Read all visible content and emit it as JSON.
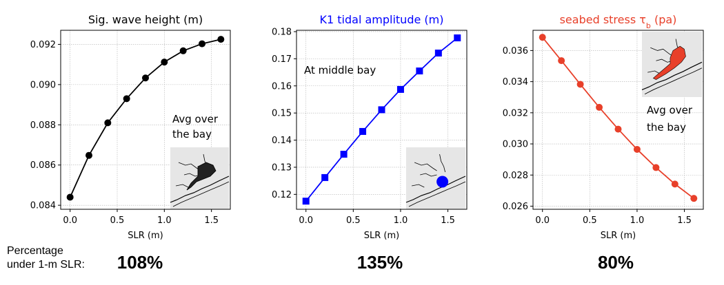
{
  "chart_data": [
    {
      "type": "line",
      "title": "Sig. wave height (m)",
      "title_color": "#000000",
      "xlabel": "SLR (m)",
      "ylabel": "",
      "xlim": [
        -0.1,
        1.7
      ],
      "ylim": [
        0.0838,
        0.0927
      ],
      "xticks": [
        "0.0",
        "0.5",
        "1.0",
        "1.5"
      ],
      "yticks": [
        "0.084",
        "0.086",
        "0.088",
        "0.090",
        "0.092"
      ],
      "grid": true,
      "series": [
        {
          "color": "#000000",
          "marker": "circle",
          "x": [
            0.0,
            0.2,
            0.4,
            0.6,
            0.8,
            1.0,
            1.2,
            1.4,
            1.6
          ],
          "values": [
            0.0844,
            0.08648,
            0.0881,
            0.0893,
            0.09033,
            0.09112,
            0.09168,
            0.09203,
            0.09225
          ]
        }
      ],
      "annotations": [
        "Avg over",
        "the bay"
      ],
      "inset_map": "bay-map-icon"
    },
    {
      "type": "line",
      "title": "K1 tidal amplitude (m)",
      "title_color": "#0000ff",
      "xlabel": "SLR (m)",
      "ylabel": "",
      "xlim": [
        -0.1,
        1.7
      ],
      "ylim": [
        0.1145,
        0.1805
      ],
      "xticks": [
        "0.0",
        "0.5",
        "1.0",
        "1.5"
      ],
      "yticks": [
        "0.12",
        "0.13",
        "0.14",
        "0.15",
        "0.16",
        "0.17",
        "0.18"
      ],
      "grid": true,
      "series": [
        {
          "color": "#0000ff",
          "marker": "square",
          "x": [
            0.0,
            0.2,
            0.4,
            0.6,
            0.8,
            1.0,
            1.2,
            1.4,
            1.6
          ],
          "values": [
            0.1175,
            0.1262,
            0.1348,
            0.1432,
            0.1512,
            0.1587,
            0.1655,
            0.1721,
            0.1777
          ]
        }
      ],
      "annotations": [
        "At middle bay"
      ],
      "inset_map": "bay-map-icon"
    },
    {
      "type": "line",
      "title": "seabed stress τ",
      "title_subscript": "b",
      "title_suffix": " (pa)",
      "title_color": "#e8402a",
      "xlabel": "SLR (m)",
      "ylabel": "",
      "xlim": [
        -0.1,
        1.7
      ],
      "ylim": [
        0.0258,
        0.0373
      ],
      "xticks": [
        "0.0",
        "0.5",
        "1.0",
        "1.5"
      ],
      "yticks": [
        "0.026",
        "0.028",
        "0.030",
        "0.032",
        "0.034",
        "0.036"
      ],
      "grid": true,
      "series": [
        {
          "color": "#e8402a",
          "marker": "circle",
          "x": [
            0.0,
            0.2,
            0.4,
            0.6,
            0.8,
            1.0,
            1.2,
            1.4,
            1.6
          ],
          "values": [
            0.03685,
            0.03535,
            0.03383,
            0.03235,
            0.03095,
            0.02965,
            0.02848,
            0.02742,
            0.0265
          ]
        }
      ],
      "annotations": [
        "Avg over",
        "the bay"
      ],
      "inset_map": "bay-map-icon"
    }
  ],
  "footer": {
    "caption_line1": "Percentage",
    "caption_line2": "under 1-m SLR:",
    "percentages": [
      "108%",
      "135%",
      "80%"
    ]
  }
}
